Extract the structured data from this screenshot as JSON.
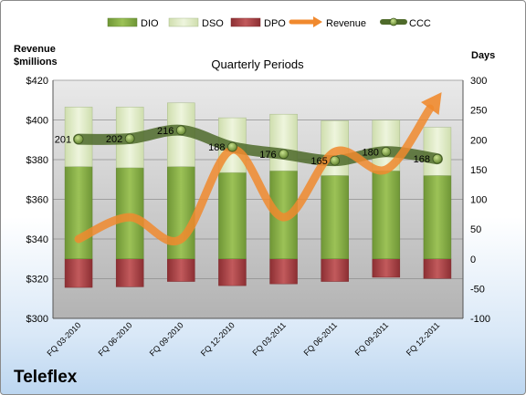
{
  "chart_data": {
    "type": "bar",
    "title": "Quarterly Periods",
    "company": "Teleflex",
    "left_axis_label": [
      "Revenue",
      "$millions"
    ],
    "right_axis_label": "Days",
    "categories": [
      "FQ 03-2010",
      "FQ 06-2010",
      "FQ 09-2010",
      "FQ 12-2010",
      "FQ 03-2011",
      "FQ 06-2011",
      "FQ 09-2011",
      "FQ 12-2011"
    ],
    "left_axis": {
      "min": 300,
      "max": 420,
      "step": 20,
      "prefix": "$"
    },
    "right_axis": {
      "min": -100,
      "max": 300,
      "step": 50
    },
    "series": [
      {
        "name": "DIO",
        "type": "stacked-bar",
        "axis": "right",
        "values": [
          155,
          153,
          155,
          145,
          148,
          140,
          148,
          140
        ],
        "color": "#8fb548"
      },
      {
        "name": "DSO",
        "type": "stacked-bar",
        "axis": "right",
        "values": [
          100,
          102,
          107,
          92,
          95,
          92,
          85,
          81
        ],
        "color": "#e1edc8"
      },
      {
        "name": "DPO",
        "type": "stacked-bar",
        "axis": "right",
        "values": [
          -48,
          -47,
          -38,
          -45,
          -42,
          -38,
          -31,
          -33
        ],
        "color": "#b5474a"
      },
      {
        "name": "Revenue",
        "type": "line",
        "axis": "left",
        "values": [
          340,
          351,
          340,
          385,
          351,
          384,
          375,
          411
        ],
        "color": "#f0892e"
      },
      {
        "name": "CCC",
        "type": "line",
        "axis": "right",
        "values": [
          201,
          202,
          216,
          188,
          176,
          165,
          180,
          168
        ],
        "color": "#4e6a2a"
      }
    ],
    "ccc_labels": [
      "201",
      "202",
      "216",
      "188",
      "176",
      "165",
      "180",
      "168"
    ],
    "legend_position": "top"
  }
}
